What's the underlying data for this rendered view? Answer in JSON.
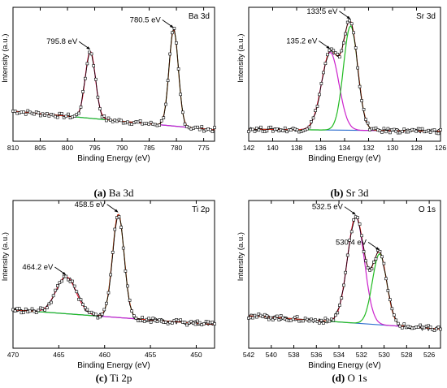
{
  "panel_captions": [
    {
      "letter": "(a)",
      "text": "Ba 3d"
    },
    {
      "letter": "(b)",
      "text": "Sr 3d"
    },
    {
      "letter": "(c)",
      "text": "Ti 2p"
    },
    {
      "letter": "(d)",
      "text": "O 1s"
    }
  ],
  "colors": {
    "raw": "#000000",
    "envelope": "#e8211b",
    "baseline": "#2f6fce",
    "comp1": "#cc22cc",
    "comp2": "#22bb22",
    "comp3": "#1ec01e"
  },
  "chart_data": [
    {
      "type": "line",
      "title": "Ba 3d",
      "xlabel": "Binding Energy (eV)",
      "ylabel": "Intensity (a.u.)",
      "xlim": [
        810,
        773
      ],
      "x_reversed": true,
      "x_ticks": [
        810,
        805,
        800,
        795,
        790,
        785,
        780,
        775
      ],
      "baseline": {
        "x": [
          810,
          773
        ],
        "y": [
          0.225,
          0.085
        ]
      },
      "peaks": [
        {
          "name": "",
          "center": 795.8,
          "fwhm": 2.2,
          "height": 0.5,
          "color": "#cc22cc"
        },
        {
          "name": "",
          "center": 780.5,
          "fwhm": 2.0,
          "height": 0.72,
          "color": "#22bb22"
        }
      ],
      "annotations": [
        {
          "text": "795.8 eV",
          "x": 795.8
        },
        {
          "text": "780.5 eV",
          "x": 780.5
        }
      ]
    },
    {
      "type": "line",
      "title": "Sr 3d",
      "xlabel": "Binding Energy (eV)",
      "ylabel": "Intensity (a.u.)",
      "xlim": [
        142,
        126
      ],
      "x_reversed": true,
      "x_ticks": [
        142,
        140,
        138,
        136,
        134,
        132,
        130,
        128,
        126
      ],
      "baseline": {
        "x": [
          142,
          126
        ],
        "y": [
          0.09,
          0.075
        ]
      },
      "peaks": [
        {
          "name": "",
          "center": 135.2,
          "fwhm": 1.7,
          "height": 0.58,
          "color": "#cc22cc"
        },
        {
          "name": "",
          "center": 133.5,
          "fwhm": 1.4,
          "height": 0.78,
          "color": "#22bb22"
        }
      ],
      "annotations": [
        {
          "text": "135.2 eV",
          "x": 135.2
        },
        {
          "text": "133.5 eV",
          "x": 133.5
        }
      ]
    },
    {
      "type": "line",
      "title": "Ti 2p",
      "xlabel": "Binding Energy (eV)",
      "ylabel": "Intensity (a.u.)",
      "xlim": [
        470,
        448
      ],
      "x_reversed": true,
      "x_ticks": [
        470,
        465,
        460,
        455,
        450
      ],
      "baseline": {
        "x": [
          470,
          448
        ],
        "y": [
          0.26,
          0.16
        ]
      },
      "peaks": [
        {
          "name": "",
          "center": 464.2,
          "fwhm": 2.6,
          "height": 0.25,
          "color": "#cc22cc"
        },
        {
          "name": "",
          "center": 458.5,
          "fwhm": 1.5,
          "height": 0.7,
          "color": "#22bb22"
        }
      ],
      "annotations": [
        {
          "text": "464.2 eV",
          "x": 464.2
        },
        {
          "text": "458.5 eV",
          "x": 458.5
        }
      ]
    },
    {
      "type": "line",
      "title": "O 1s",
      "xlabel": "Binding Energy (eV)",
      "ylabel": "Intensity (a.u.)",
      "xlim": [
        542,
        525
      ],
      "x_reversed": true,
      "x_ticks": [
        542,
        540,
        538,
        536,
        534,
        532,
        530,
        528,
        526
      ],
      "baseline": {
        "x": [
          542,
          525
        ],
        "y": [
          0.22,
          0.13
        ]
      },
      "peaks": [
        {
          "name": "",
          "center": 532.5,
          "fwhm": 1.75,
          "height": 0.72,
          "color": "#cc22cc"
        },
        {
          "name": "",
          "center": 530.4,
          "fwhm": 1.5,
          "height": 0.48,
          "color": "#22bb22"
        }
      ],
      "annotations": [
        {
          "text": "532.5 eV",
          "x": 532.5
        },
        {
          "text": "530.4 eV",
          "x": 530.4
        }
      ]
    }
  ]
}
